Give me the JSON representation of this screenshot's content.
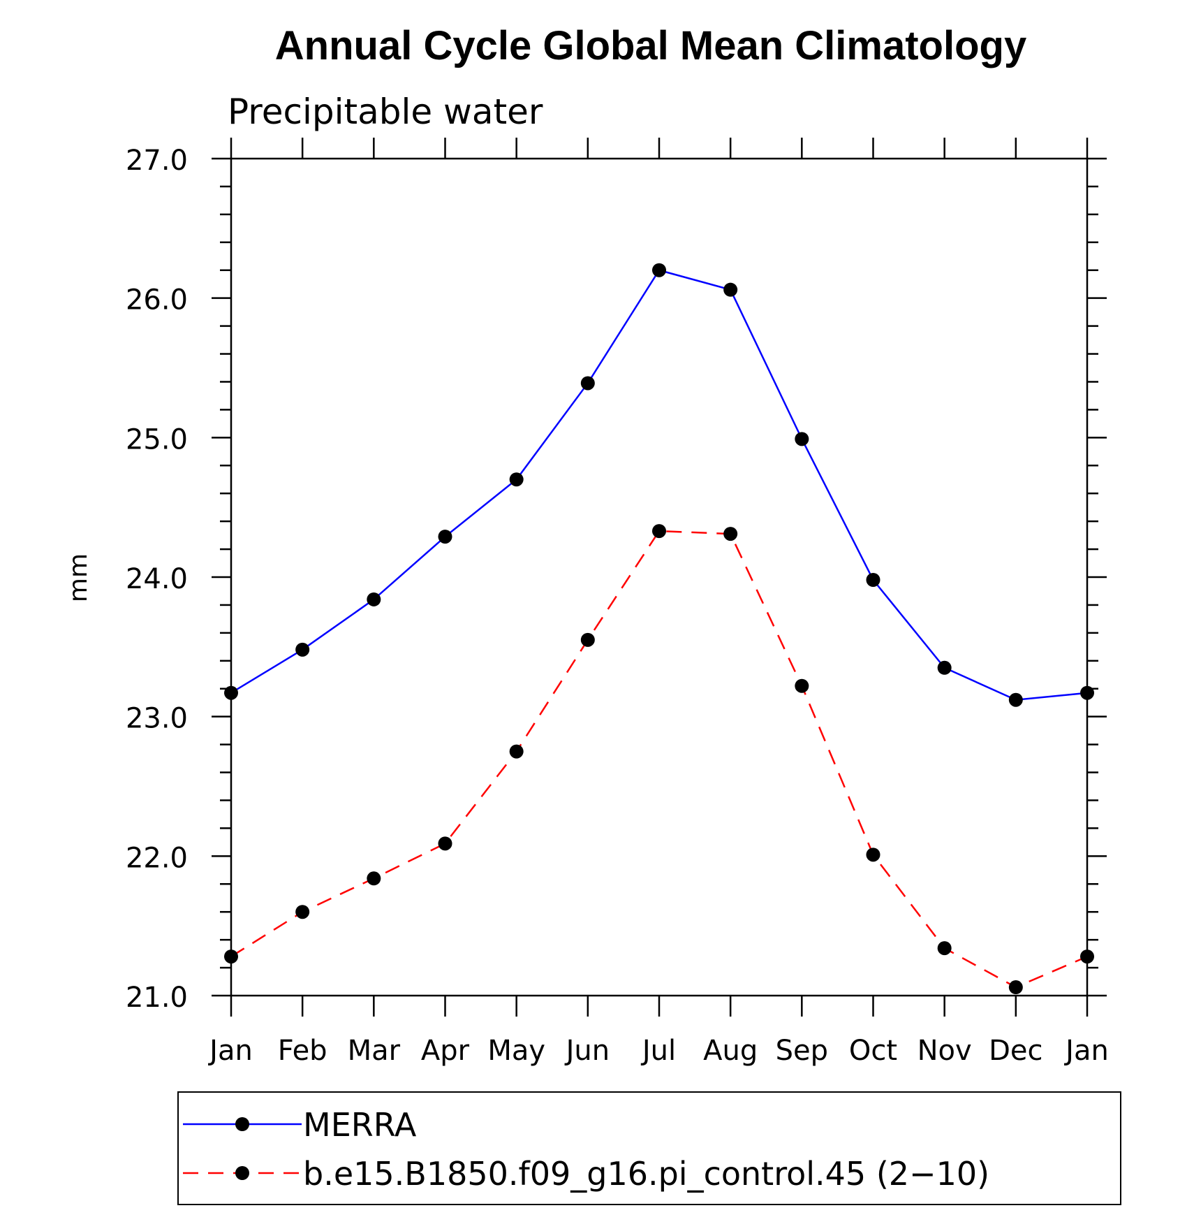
{
  "chart_data": {
    "type": "line",
    "title": "Annual Cycle Global Mean Climatology",
    "subtitle": "Precipitable water",
    "ylabel": "mm",
    "xlabel": "",
    "ylim": [
      21.0,
      27.0
    ],
    "yticks": [
      21.0,
      22.0,
      23.0,
      24.0,
      25.0,
      26.0,
      27.0
    ],
    "ytick_labels": [
      "21.0",
      "22.0",
      "23.0",
      "24.0",
      "25.0",
      "26.0",
      "27.0"
    ],
    "y_minor_step": 0.2,
    "categories": [
      "Jan",
      "Feb",
      "Mar",
      "Apr",
      "May",
      "Jun",
      "Jul",
      "Aug",
      "Sep",
      "Oct",
      "Nov",
      "Dec",
      "Jan"
    ],
    "grid": false,
    "legend_position": "bottom",
    "series": [
      {
        "name": "MERRA",
        "color": "#0000ff",
        "dash": "solid",
        "marker_color": "#000000",
        "values": [
          23.17,
          23.48,
          23.84,
          24.29,
          24.7,
          25.39,
          26.2,
          26.06,
          24.99,
          23.98,
          23.35,
          23.12,
          23.17
        ]
      },
      {
        "name": "b.e15.B1850.f09_g16.pi_control.45 (2−10)",
        "color": "#ff0000",
        "dash": "dashed",
        "marker_color": "#000000",
        "values": [
          21.28,
          21.6,
          21.84,
          22.09,
          22.75,
          23.55,
          24.33,
          24.31,
          23.22,
          22.01,
          21.34,
          21.06,
          21.28
        ]
      }
    ]
  }
}
